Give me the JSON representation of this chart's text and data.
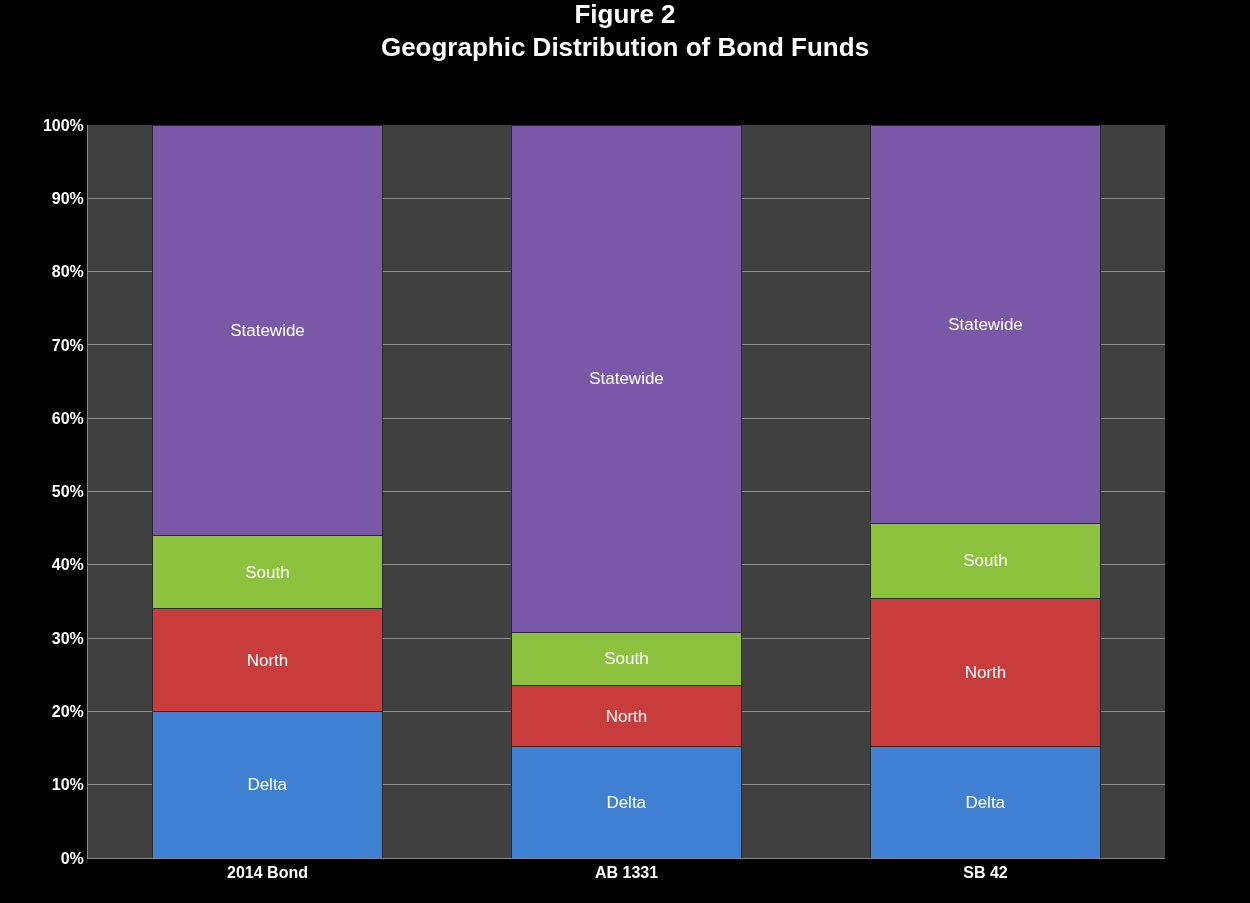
{
  "chart_data": {
    "type": "bar",
    "stacked": true,
    "title": "Figure 2\nGeographic Distribution of Bond Funds",
    "categories": [
      "2014 Bond",
      "AB 1331",
      "SB 42"
    ],
    "series": [
      {
        "name": "Delta",
        "color": "#3f80d2",
        "values": [
          20,
          15.2,
          15.2
        ]
      },
      {
        "name": "North",
        "color": "#c93c3c",
        "values": [
          14,
          8.3,
          20.2
        ]
      },
      {
        "name": "South",
        "color": "#8dc23f",
        "values": [
          10,
          7.3,
          10.3
        ]
      },
      {
        "name": "Statewide",
        "color": "#7a58a8",
        "values": [
          56,
          69.2,
          54.3
        ]
      }
    ],
    "ylim": [
      0,
      100
    ],
    "yticks": [
      {
        "value": 0,
        "label": "0%"
      },
      {
        "value": 10,
        "label": "10%"
      },
      {
        "value": 20,
        "label": "20%"
      },
      {
        "value": 30,
        "label": "30%"
      },
      {
        "value": 40,
        "label": "40%"
      },
      {
        "value": 50,
        "label": "50%"
      },
      {
        "value": 60,
        "label": "60%"
      },
      {
        "value": 70,
        "label": "70%"
      },
      {
        "value": 80,
        "label": "80%"
      },
      {
        "value": 90,
        "label": "90%"
      },
      {
        "value": 100,
        "label": "100%"
      }
    ],
    "grid": "y",
    "legend": false
  }
}
